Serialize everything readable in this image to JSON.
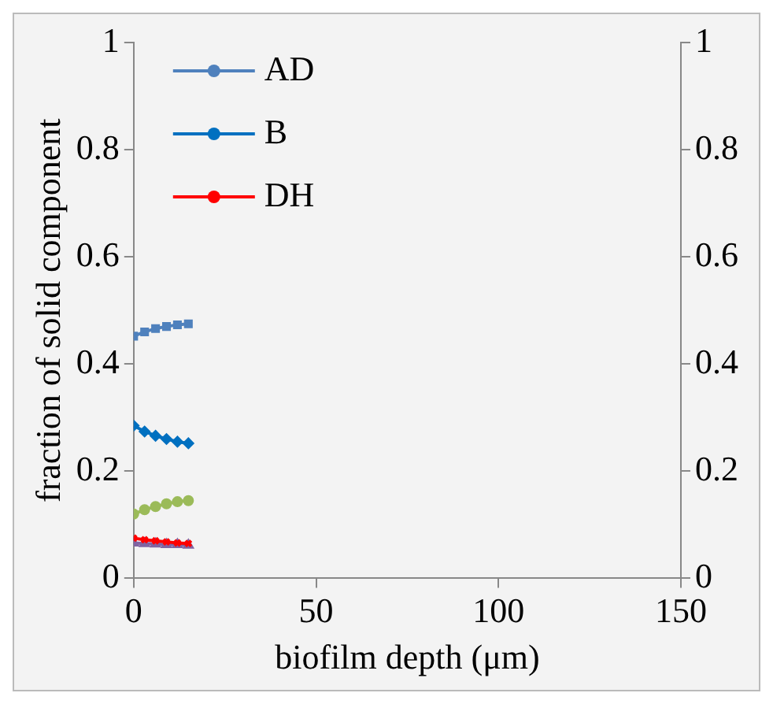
{
  "chart_data": {
    "type": "line",
    "xlabel": "biofilm depth (μm)",
    "ylabel": "fraction of solid component",
    "x": [
      0,
      3,
      6,
      9,
      12,
      15
    ],
    "xlim": [
      0,
      150
    ],
    "xticks": [
      0,
      50,
      100,
      150
    ],
    "ylim": [
      0,
      1
    ],
    "yticks": [
      0,
      0.2,
      0.4,
      0.6,
      0.8,
      1
    ],
    "y2lim": [
      0,
      1
    ],
    "y2ticks": [
      0,
      0.2,
      0.4,
      0.6,
      0.8,
      1
    ],
    "grid": false,
    "legend": "top left",
    "series": [
      {
        "name": "AD",
        "color": "#4f81bd",
        "marker": "square",
        "values": [
          0.452,
          0.46,
          0.466,
          0.47,
          0.473,
          0.475
        ]
      },
      {
        "name": "B",
        "color": "#0070c0",
        "marker": "diamond",
        "values": [
          0.285,
          0.274,
          0.266,
          0.26,
          0.255,
          0.252
        ]
      },
      {
        "name": "DH",
        "color": "#ff0000",
        "marker": "cross",
        "values": [
          0.075,
          0.072,
          0.07,
          0.068,
          0.066,
          0.065
        ]
      },
      {
        "color": "#9bbb59",
        "marker": "circle",
        "values": [
          0.12,
          0.128,
          0.134,
          0.139,
          0.143,
          0.145
        ]
      },
      {
        "color": "#8064a2",
        "marker": "triangle",
        "values": [
          0.066,
          0.065,
          0.064,
          0.063,
          0.063,
          0.062
        ]
      }
    ]
  }
}
